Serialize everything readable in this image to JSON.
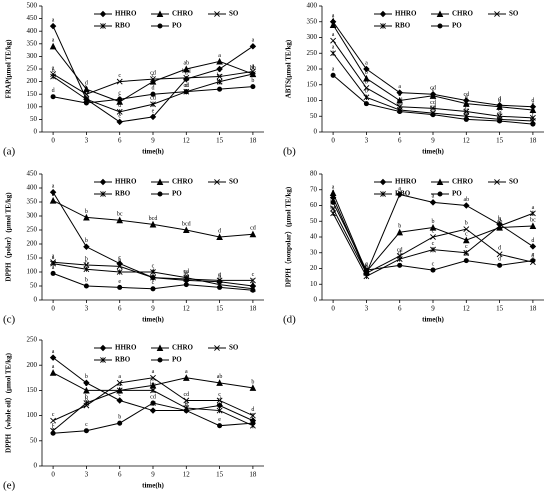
{
  "chart_data": [
    {
      "type": "line",
      "panel_label": "(a)",
      "xlabel": "time(h)",
      "ylabel": "FRAP(μmol TE/kg)",
      "x": [
        0,
        3,
        6,
        9,
        12,
        15,
        18
      ],
      "xlim": [
        -1,
        19
      ],
      "xticks": [
        0,
        3,
        6,
        9,
        12,
        15,
        18
      ],
      "ylim": [
        0,
        500
      ],
      "yticks": [
        0,
        50,
        100,
        150,
        200,
        250,
        300,
        350,
        400,
        450,
        500
      ],
      "legend": "top-right",
      "series": [
        {
          "name": "HHRO",
          "color": "#000000",
          "marker": "diamond",
          "values": [
            420,
            130,
            40,
            60,
            210,
            250,
            340
          ],
          "letters": [
            "a",
            "c",
            "e",
            "e",
            "d",
            "b",
            "a"
          ]
        },
        {
          "name": "CHRO",
          "color": "#000000",
          "marker": "triangle",
          "values": [
            340,
            170,
            120,
            200,
            250,
            280,
            230
          ],
          "letters": [
            "a",
            "d",
            "c",
            "c",
            "ab",
            "a",
            "bc"
          ]
        },
        {
          "name": "SO",
          "color": "#000000",
          "marker": "x",
          "values": [
            230,
            150,
            200,
            210,
            215,
            220,
            240
          ],
          "letters": [
            "a",
            "b",
            "c",
            "cd",
            "bcd",
            "b",
            "a"
          ]
        },
        {
          "name": "RBO",
          "color": "#000000",
          "marker": "star",
          "values": [
            220,
            130,
            80,
            110,
            160,
            200,
            230
          ],
          "letters": [
            "b",
            "c",
            "d",
            "cd",
            "cd",
            "bc",
            "ab"
          ]
        },
        {
          "name": "PO",
          "color": "#000000",
          "marker": "circle",
          "values": [
            140,
            115,
            130,
            150,
            160,
            170,
            180
          ],
          "letters": [
            "d",
            "e",
            "c",
            "d",
            "d",
            "bc",
            "b"
          ]
        }
      ]
    },
    {
      "type": "line",
      "panel_label": "(b)",
      "xlabel": "time(h)",
      "ylabel": "ABTS(μmol TE/kg)",
      "x": [
        0,
        3,
        6,
        9,
        12,
        15,
        18
      ],
      "xlim": [
        -1,
        19
      ],
      "xticks": [
        0,
        3,
        6,
        9,
        12,
        15,
        18
      ],
      "ylim": [
        0,
        400
      ],
      "yticks": [
        0,
        50,
        100,
        150,
        200,
        250,
        300,
        350,
        400
      ],
      "legend": "top-right",
      "series": [
        {
          "name": "HHRO",
          "color": "#000000",
          "marker": "diamond",
          "values": [
            350,
            200,
            125,
            120,
            100,
            85,
            80
          ],
          "letters": [
            "a",
            "a",
            "a",
            "cd",
            "cd",
            "d",
            "d"
          ]
        },
        {
          "name": "CHRO",
          "color": "#000000",
          "marker": "triangle",
          "values": [
            340,
            170,
            100,
            115,
            90,
            80,
            70
          ],
          "letters": [
            "a",
            "b",
            "b",
            "c",
            "d",
            "d",
            "e"
          ]
        },
        {
          "name": "SO",
          "color": "#000000",
          "marker": "x",
          "values": [
            290,
            140,
            80,
            75,
            65,
            50,
            45
          ],
          "letters": [
            "a",
            "b",
            "cd",
            "cd",
            "de",
            "e",
            "f"
          ]
        },
        {
          "name": "RBO",
          "color": "#000000",
          "marker": "star",
          "values": [
            250,
            110,
            70,
            60,
            50,
            40,
            35
          ],
          "letters": [
            "a",
            "b",
            "c",
            "cd",
            "de",
            "ef",
            "f"
          ]
        },
        {
          "name": "PO",
          "color": "#000000",
          "marker": "circle",
          "values": [
            180,
            90,
            65,
            55,
            40,
            35,
            25
          ],
          "letters": [
            "a",
            "b",
            "c",
            "cd",
            "de",
            "e",
            "e"
          ]
        }
      ]
    },
    {
      "type": "line",
      "panel_label": "(c)",
      "xlabel": "time(h)",
      "ylabel": "DPPH（polar）(μmol TE/kg)",
      "x": [
        0,
        3,
        6,
        9,
        12,
        15,
        18
      ],
      "xlim": [
        -1,
        19
      ],
      "xticks": [
        0,
        3,
        6,
        9,
        12,
        15,
        18
      ],
      "ylim": [
        0,
        450
      ],
      "yticks": [
        0,
        50,
        100,
        150,
        200,
        250,
        300,
        350,
        400,
        450
      ],
      "legend": "top-right",
      "series": [
        {
          "name": "HHRO",
          "color": "#000000",
          "marker": "diamond",
          "values": [
            385,
            190,
            130,
            80,
            70,
            65,
            50
          ],
          "letters": [
            "a",
            "b",
            "c",
            "d",
            "d",
            "d",
            "e"
          ]
        },
        {
          "name": "CHRO",
          "color": "#000000",
          "marker": "triangle",
          "values": [
            355,
            295,
            285,
            270,
            250,
            225,
            235
          ],
          "letters": [
            "a",
            "b",
            "bc",
            "bcd",
            "bcd",
            "d",
            "cd"
          ]
        },
        {
          "name": "SO",
          "color": "#000000",
          "marker": "x",
          "values": [
            135,
            125,
            120,
            80,
            75,
            70,
            70
          ],
          "letters": [
            "a",
            "b",
            "b",
            "c",
            "bc",
            "c",
            "c"
          ]
        },
        {
          "name": "RBO",
          "color": "#000000",
          "marker": "star",
          "values": [
            130,
            110,
            100,
            100,
            80,
            55,
            40
          ],
          "letters": [
            "a",
            "b",
            "c",
            "c",
            "cd",
            "d",
            "e"
          ]
        },
        {
          "name": "PO",
          "color": "#000000",
          "marker": "circle",
          "values": [
            95,
            50,
            45,
            40,
            55,
            45,
            35
          ],
          "letters": [
            "a",
            "b",
            "e",
            "c",
            "cd",
            "de",
            "e"
          ]
        }
      ]
    },
    {
      "type": "line",
      "panel_label": "(d)",
      "xlabel": "time(h)",
      "ylabel": "DPPH（nonpolar）(μmol TE/kg)",
      "x": [
        0,
        3,
        6,
        9,
        12,
        15,
        18
      ],
      "xlim": [
        -1,
        19
      ],
      "xticks": [
        0,
        3,
        6,
        9,
        12,
        15,
        18
      ],
      "ylim": [
        0,
        80
      ],
      "yticks": [
        0,
        10,
        20,
        30,
        40,
        50,
        60,
        70,
        80
      ],
      "legend": "top-right",
      "series": [
        {
          "name": "HHRO",
          "color": "#000000",
          "marker": "diamond",
          "values": [
            65,
            17,
            67,
            62,
            60,
            48,
            34
          ],
          "letters": [
            "a",
            "d",
            "a",
            "a",
            "ab",
            "b",
            "d"
          ]
        },
        {
          "name": "CHRO",
          "color": "#000000",
          "marker": "triangle",
          "values": [
            68,
            18,
            43,
            46,
            38,
            46,
            47
          ],
          "letters": [
            "a",
            "d",
            "b",
            "b",
            "c",
            "ab",
            "bc"
          ]
        },
        {
          "name": "SO",
          "color": "#000000",
          "marker": "x",
          "values": [
            58,
            17,
            28,
            40,
            45,
            29,
            24
          ],
          "letters": [
            "bc",
            "e",
            "cd",
            "c",
            "b",
            "d",
            "d"
          ]
        },
        {
          "name": "RBO",
          "color": "#000000",
          "marker": "star",
          "values": [
            55,
            15,
            26,
            32,
            30,
            47,
            55
          ],
          "letters": [
            "bc",
            "e",
            "d",
            "c",
            "c",
            "b",
            "a"
          ]
        },
        {
          "name": "PO",
          "color": "#000000",
          "marker": "circle",
          "values": [
            62,
            19,
            22,
            19,
            25,
            22,
            25
          ],
          "letters": [
            "b",
            "e",
            "c",
            "c",
            "bc",
            "d",
            "c"
          ]
        }
      ]
    },
    {
      "type": "line",
      "panel_label": "(e)",
      "xlabel": "time(h)",
      "ylabel": "DPPH（whole oil）(μmol TE/kg)",
      "x": [
        0,
        3,
        6,
        9,
        12,
        15,
        18
      ],
      "xlim": [
        -1,
        19
      ],
      "xticks": [
        0,
        3,
        6,
        9,
        12,
        15,
        18
      ],
      "ylim": [
        0,
        250
      ],
      "yticks": [
        0,
        50,
        100,
        150,
        200,
        250
      ],
      "legend": "top-right",
      "series": [
        {
          "name": "HHRO",
          "color": "#000000",
          "marker": "diamond",
          "values": [
            215,
            165,
            130,
            110,
            110,
            120,
            90
          ],
          "letters": [
            "a",
            "b",
            "c",
            "cd",
            "d",
            "d",
            "e"
          ]
        },
        {
          "name": "CHRO",
          "color": "#000000",
          "marker": "triangle",
          "values": [
            185,
            150,
            150,
            160,
            175,
            165,
            155
          ],
          "letters": [
            "a",
            "b",
            "b",
            "b",
            "a",
            "ab",
            "b"
          ]
        },
        {
          "name": "SO",
          "color": "#000000",
          "marker": "x",
          "values": [
            90,
            120,
            165,
            175,
            130,
            130,
            100
          ],
          "letters": [
            "c",
            "b",
            "a",
            "a",
            "cd",
            "c",
            "d"
          ]
        },
        {
          "name": "RBO",
          "color": "#000000",
          "marker": "star",
          "values": [
            70,
            125,
            150,
            150,
            115,
            110,
            80
          ],
          "letters": [
            "c",
            "b",
            "a",
            "bc",
            "c",
            "cd",
            "c"
          ]
        },
        {
          "name": "PO",
          "color": "#000000",
          "marker": "circle",
          "values": [
            65,
            70,
            85,
            125,
            110,
            80,
            85
          ],
          "letters": [
            "c",
            "c",
            "b",
            "cd",
            "d",
            "e",
            "c"
          ]
        }
      ]
    }
  ]
}
